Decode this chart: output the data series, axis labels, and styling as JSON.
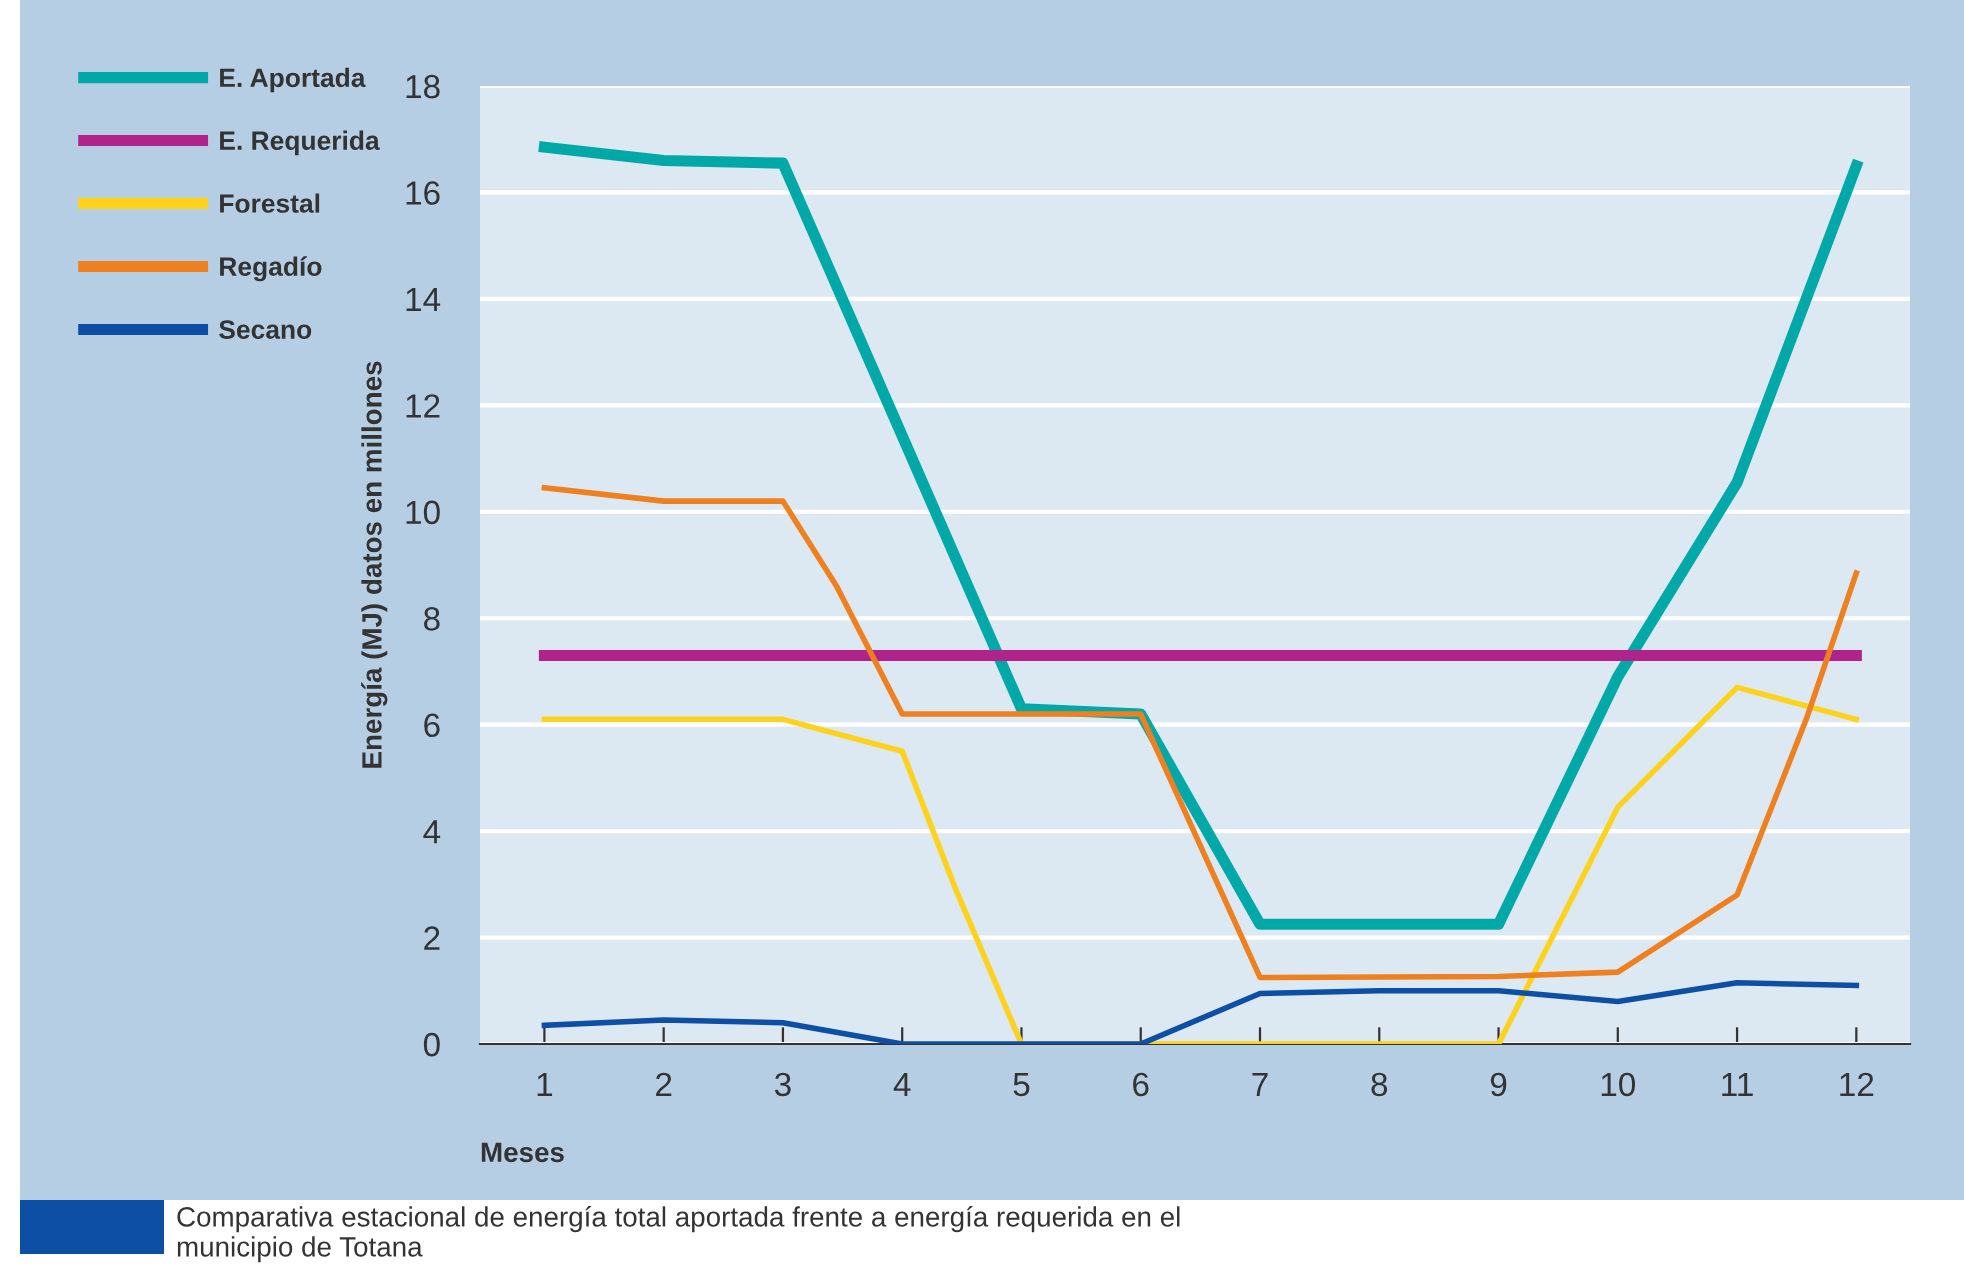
{
  "chart_data": {
    "type": "line",
    "xlabel": "Meses",
    "ylabel": "Energía (MJ) datos en millones",
    "xlim": [
      0.46,
      12.45
    ],
    "xticks": [
      1,
      2,
      3,
      4,
      5,
      6,
      7,
      8,
      9,
      10,
      11,
      12
    ],
    "ylim": [
      0,
      18
    ],
    "yticks": [
      0,
      2,
      4,
      6,
      8,
      10,
      12,
      14,
      16,
      18
    ],
    "grid": "y",
    "legend": "left",
    "marker": "none",
    "line_style": "solid",
    "series": [
      {
        "name": "E. Aportada",
        "color": "#00a8a8",
        "x": [
          1,
          2,
          3,
          5,
          6,
          7,
          9,
          10,
          11,
          12
        ],
        "values": [
          16.85,
          16.6,
          16.55,
          6.3,
          6.2,
          2.25,
          2.25,
          6.9,
          10.55,
          16.5
        ]
      },
      {
        "name": "E. Requerida",
        "color": "#b0238a",
        "x": [
          1,
          12
        ],
        "values": [
          7.3,
          7.3
        ]
      },
      {
        "name": "Forestal",
        "color": "#ffd21e",
        "x": [
          1,
          2,
          3,
          4,
          4.45,
          5,
          6,
          7,
          9,
          10,
          11,
          12
        ],
        "values": [
          6.1,
          6.1,
          6.1,
          5.5,
          2.9,
          0,
          0,
          0,
          0,
          4.45,
          6.7,
          6.1
        ]
      },
      {
        "name": "Regadío",
        "color": "#ee8020",
        "x": [
          1,
          2,
          3,
          3.45,
          4,
          5,
          6,
          7,
          9,
          10,
          11,
          11.58,
          12
        ],
        "values": [
          10.45,
          10.2,
          10.2,
          8.6,
          6.2,
          6.2,
          6.2,
          1.25,
          1.27,
          1.35,
          2.8,
          6.1,
          8.85
        ]
      },
      {
        "name": "Secano",
        "color": "#0d4fa5",
        "x": [
          1,
          2,
          3,
          4,
          5,
          6,
          7,
          8,
          9,
          10,
          11,
          12
        ],
        "values": [
          0.35,
          0.45,
          0.4,
          0,
          0,
          0,
          0.95,
          1.0,
          1.0,
          0.8,
          1.15,
          1.1
        ]
      }
    ],
    "annotations": [
      "Comparativa estacional de energía total aportada frente a energía requerida en el municipio de Totana"
    ]
  }
}
